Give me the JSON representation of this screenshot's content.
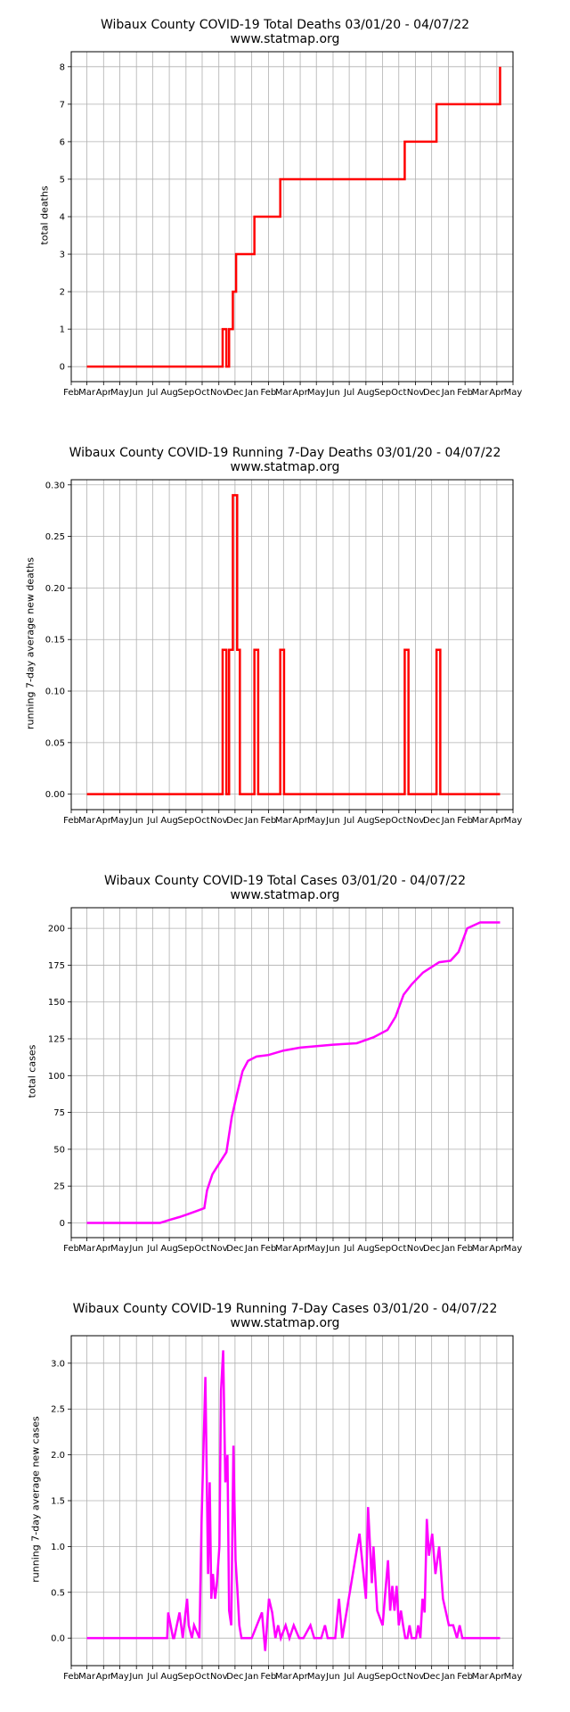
{
  "colors": {
    "deaths": "#ff0000",
    "cases": "#ff00ff",
    "grid": "#b0b0b0",
    "axis": "#000000"
  },
  "chart_data": [
    {
      "type": "line",
      "title": "Wibaux County COVID-19 Total Deaths 03/01/20 - 04/07/22",
      "subtitle": "www.statmap.org",
      "xlabel": "",
      "ylabel": "total deaths",
      "x_tick_labels": [
        "Feb",
        "Mar",
        "Apr",
        "May",
        "Jun",
        "Jul",
        "Aug",
        "Sep",
        "Oct",
        "Nov",
        "Dec",
        "Jan",
        "Feb",
        "Mar",
        "Apr",
        "May",
        "Jun",
        "Jul",
        "Aug",
        "Sep",
        "Oct",
        "Nov",
        "Dec",
        "Jan",
        "Feb",
        "Mar",
        "Apr",
        "May"
      ],
      "x_range": [
        "2020-02-01",
        "2022-05-01"
      ],
      "ylim": [
        -0.4,
        8.4
      ],
      "y_ticks": [
        0,
        1,
        2,
        3,
        4,
        5,
        6,
        7,
        8
      ],
      "y_tick_labels": [
        "0",
        "1",
        "2",
        "3",
        "4",
        "5",
        "6",
        "7",
        "8"
      ],
      "grid": true,
      "series": [
        {
          "color": "#ff0000",
          "step": true,
          "x": [
            "2020-03-01",
            "2020-11-08",
            "2020-11-15",
            "2020-11-20",
            "2020-11-27",
            "2020-12-03",
            "2021-01-06",
            "2021-02-23",
            "2021-10-12",
            "2021-12-10",
            "2022-04-07"
          ],
          "y": [
            0,
            1,
            0,
            1,
            2,
            3,
            4,
            5,
            6,
            7,
            8
          ]
        }
      ]
    },
    {
      "type": "line",
      "title": "Wibaux County COVID-19 Running 7-Day Deaths 03/01/20 - 04/07/22",
      "subtitle": "www.statmap.org",
      "xlabel": "",
      "ylabel": "running 7-day average new deaths",
      "x_tick_labels": [
        "Feb",
        "Mar",
        "Apr",
        "May",
        "Jun",
        "Jul",
        "Aug",
        "Sep",
        "Oct",
        "Nov",
        "Dec",
        "Jan",
        "Feb",
        "Mar",
        "Apr",
        "May",
        "Jun",
        "Jul",
        "Aug",
        "Sep",
        "Oct",
        "Nov",
        "Dec",
        "Jan",
        "Feb",
        "Mar",
        "Apr",
        "May"
      ],
      "x_range": [
        "2020-02-01",
        "2022-05-01"
      ],
      "ylim": [
        -0.015,
        0.305
      ],
      "y_ticks": [
        0,
        0.05,
        0.1,
        0.15,
        0.2,
        0.25,
        0.3
      ],
      "y_tick_labels": [
        "0.00",
        "0.05",
        "0.10",
        "0.15",
        "0.20",
        "0.25",
        "0.30"
      ],
      "grid": true,
      "series": [
        {
          "color": "#ff0000",
          "step": true,
          "x": [
            "2020-03-01",
            "2020-11-08",
            "2020-11-15",
            "2020-11-20",
            "2020-11-27",
            "2020-12-05",
            "2020-12-10",
            "2020-12-16",
            "2021-01-06",
            "2021-01-13",
            "2021-02-23",
            "2021-03-02",
            "2021-10-12",
            "2021-10-19",
            "2021-12-10",
            "2021-12-17",
            "2022-04-07"
          ],
          "y": [
            0,
            0.14,
            0,
            0.14,
            0.29,
            0.14,
            0,
            0,
            0.14,
            0,
            0.14,
            0,
            0.14,
            0,
            0.14,
            0,
            0
          ]
        }
      ]
    },
    {
      "type": "line",
      "title": "Wibaux County COVID-19 Total Cases 03/01/20 - 04/07/22",
      "subtitle": "www.statmap.org",
      "xlabel": "",
      "ylabel": "total cases",
      "x_tick_labels": [
        "Feb",
        "Mar",
        "Apr",
        "May",
        "Jun",
        "Jul",
        "Aug",
        "Sep",
        "Oct",
        "Nov",
        "Dec",
        "Jan",
        "Feb",
        "Mar",
        "Apr",
        "May",
        "Jun",
        "Jul",
        "Aug",
        "Sep",
        "Oct",
        "Nov",
        "Dec",
        "Jan",
        "Feb",
        "Mar",
        "Apr",
        "May"
      ],
      "x_range": [
        "2020-02-01",
        "2022-05-01"
      ],
      "ylim": [
        -10,
        214
      ],
      "y_ticks": [
        0,
        25,
        50,
        75,
        100,
        125,
        150,
        175,
        200
      ],
      "y_tick_labels": [
        "0",
        "25",
        "50",
        "75",
        "100",
        "125",
        "150",
        "175",
        "200"
      ],
      "grid": true,
      "series": [
        {
          "color": "#ff00ff",
          "step": false,
          "x": [
            "2020-03-01",
            "2020-07-15",
            "2020-08-01",
            "2020-08-20",
            "2020-09-05",
            "2020-09-20",
            "2020-10-05",
            "2020-10-10",
            "2020-10-20",
            "2020-11-01",
            "2020-11-15",
            "2020-11-25",
            "2020-12-05",
            "2020-12-15",
            "2020-12-25",
            "2021-01-10",
            "2021-02-01",
            "2021-03-01",
            "2021-04-01",
            "2021-06-01",
            "2021-07-15",
            "2021-08-15",
            "2021-09-10",
            "2021-09-25",
            "2021-10-10",
            "2021-10-25",
            "2021-11-15",
            "2021-12-15",
            "2022-01-05",
            "2022-01-20",
            "2022-02-05",
            "2022-03-01",
            "2022-04-07"
          ],
          "y": [
            0,
            0,
            2,
            4,
            6,
            8,
            10,
            22,
            33,
            40,
            48,
            72,
            88,
            103,
            110,
            113,
            114,
            117,
            119,
            121,
            122,
            126,
            131,
            140,
            155,
            162,
            170,
            177,
            178,
            184,
            200,
            204,
            204
          ]
        }
      ]
    },
    {
      "type": "line",
      "title": "Wibaux County COVID-19 Running 7-Day Cases 03/01/20 - 04/07/22",
      "subtitle": "www.statmap.org",
      "xlabel": "",
      "ylabel": "running 7-day average new cases",
      "x_tick_labels": [
        "Feb",
        "Mar",
        "Apr",
        "May",
        "Jun",
        "Jul",
        "Aug",
        "Sep",
        "Oct",
        "Nov",
        "Dec",
        "Jan",
        "Feb",
        "Mar",
        "Apr",
        "May",
        "Jun",
        "Jul",
        "Aug",
        "Sep",
        "Oct",
        "Nov",
        "Dec",
        "Jan",
        "Feb",
        "Mar",
        "Apr",
        "May"
      ],
      "x_range": [
        "2020-02-01",
        "2022-05-01"
      ],
      "ylim": [
        -0.3,
        3.3
      ],
      "y_ticks": [
        0,
        0.5,
        1,
        1.5,
        2,
        2.5,
        3
      ],
      "y_tick_labels": [
        "0.0",
        "0.5",
        "1.0",
        "1.5",
        "2.0",
        "2.5",
        "3.0"
      ],
      "grid": true,
      "series": [
        {
          "color": "#ff00ff",
          "step": false,
          "x": [
            "2020-03-01",
            "2020-07-28",
            "2020-07-30",
            "2020-08-08",
            "2020-08-10",
            "2020-08-20",
            "2020-08-26",
            "2020-09-03",
            "2020-09-06",
            "2020-09-12",
            "2020-09-16",
            "2020-09-26",
            "2020-09-30",
            "2020-10-07",
            "2020-10-12",
            "2020-10-15",
            "2020-10-18",
            "2020-10-21",
            "2020-10-25",
            "2020-10-28",
            "2020-11-02",
            "2020-11-05",
            "2020-11-09",
            "2020-11-13",
            "2020-11-17",
            "2020-11-20",
            "2020-11-24",
            "2020-11-28",
            "2020-12-02",
            "2020-12-05",
            "2020-12-09",
            "2020-12-13",
            "2020-12-17",
            "2020-12-21",
            "2020-12-25",
            "2021-01-01",
            "2021-01-20",
            "2021-01-26",
            "2021-02-02",
            "2021-02-08",
            "2021-02-14",
            "2021-02-19",
            "2021-02-24",
            "2021-03-05",
            "2021-03-12",
            "2021-03-20",
            "2021-03-30",
            "2021-04-07",
            "2021-04-20",
            "2021-04-27",
            "2021-05-10",
            "2021-05-17",
            "2021-05-22",
            "2021-06-05",
            "2021-06-12",
            "2021-06-18",
            "2021-07-20",
            "2021-08-01",
            "2021-08-05",
            "2021-08-12",
            "2021-08-15",
            "2021-08-22",
            "2021-09-01",
            "2021-09-05",
            "2021-09-11",
            "2021-09-15",
            "2021-09-19",
            "2021-09-23",
            "2021-09-27",
            "2021-10-01",
            "2021-10-05",
            "2021-10-09",
            "2021-10-13",
            "2021-10-17",
            "2021-10-21",
            "2021-10-25",
            "2021-10-29",
            "2021-11-02",
            "2021-11-06",
            "2021-11-10",
            "2021-11-14",
            "2021-11-18",
            "2021-11-22",
            "2021-11-26",
            "2021-12-02",
            "2021-12-08",
            "2021-12-15",
            "2021-12-22",
            "2022-01-02",
            "2022-01-10",
            "2022-01-17",
            "2022-01-22",
            "2022-01-27",
            "2022-02-01",
            "2022-02-05",
            "2022-02-10",
            "2022-02-15",
            "2022-02-20",
            "2022-02-25",
            "2022-03-05",
            "2022-03-15",
            "2022-03-22",
            "2022-04-07"
          ],
          "y": [
            0,
            0,
            0.28,
            0,
            0,
            0.28,
            0,
            0.43,
            0.14,
            0,
            0.14,
            0,
            1.3,
            2.85,
            0.7,
            1.7,
            0.43,
            0.7,
            0.43,
            0.57,
            1.0,
            2.7,
            3.14,
            1.7,
            2.0,
            0.3,
            0.14,
            2.1,
            0.85,
            0.57,
            0.14,
            0,
            0,
            0,
            0,
            0,
            0.28,
            -0.14,
            0.43,
            0.28,
            0,
            0.14,
            0,
            0.14,
            0,
            0.14,
            0,
            0,
            0.14,
            0,
            0,
            0.14,
            0,
            0,
            0.43,
            0,
            1.14,
            0.43,
            1.43,
            0.6,
            1.0,
            0.3,
            0.14,
            0.43,
            0.85,
            0.3,
            0.57,
            0.3,
            0.57,
            0.14,
            0.3,
            0.14,
            0,
            0,
            0.14,
            0,
            0,
            0,
            0.14,
            0,
            0.43,
            0.28,
            1.3,
            0.9,
            1.14,
            0.7,
            1.0,
            0.43,
            0.14,
            0.14,
            0,
            0.14,
            0,
            0,
            0,
            0,
            0,
            0,
            0,
            0,
            0,
            0,
            0
          ]
        }
      ]
    }
  ]
}
